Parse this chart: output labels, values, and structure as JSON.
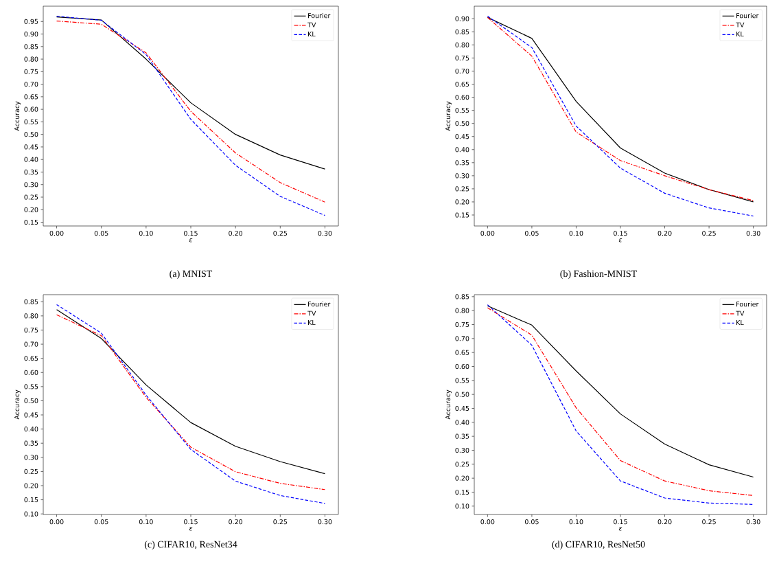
{
  "chart_data": [
    {
      "type": "line",
      "xlabel": "ε",
      "ylabel": "Accuracy",
      "annotations": [
        "(a) MNIST"
      ],
      "legend": "top right",
      "x": [
        0.0,
        0.05,
        0.1,
        0.15,
        0.2,
        0.25,
        0.3
      ],
      "series": [
        {
          "name": "Fourier",
          "color": "#000000",
          "line_style": "solid",
          "values": [
            0.968,
            0.956,
            0.8,
            0.626,
            0.5,
            0.418,
            0.362
          ]
        },
        {
          "name": "TV",
          "color": "#ff0000",
          "line_style": "dashdot",
          "values": [
            0.952,
            0.939,
            0.825,
            0.592,
            0.426,
            0.308,
            0.23
          ]
        },
        {
          "name": "KL",
          "color": "#0000ff",
          "line_style": "dashed",
          "values": [
            0.971,
            0.955,
            0.818,
            0.56,
            0.377,
            0.253,
            0.177
          ]
        }
      ],
      "xlim": [
        -0.015,
        0.315
      ],
      "ylim": [
        0.135,
        1.011
      ],
      "xticks": [
        {
          "value": 0.0,
          "label": "0.00"
        },
        0.05,
        {
          "value": 0.1,
          "label": "0.10"
        },
        0.15,
        {
          "value": 0.2,
          "label": "0.20"
        },
        0.25,
        {
          "value": 0.3,
          "label": "0.30"
        }
      ],
      "yticks": [
        0.15,
        {
          "value": 0.2,
          "label": "0.20"
        },
        0.25,
        {
          "value": 0.3,
          "label": "0.30"
        },
        0.35,
        {
          "value": 0.4,
          "label": "0.40"
        },
        0.45,
        {
          "value": 0.5,
          "label": "0.50"
        },
        0.55,
        {
          "value": 0.6,
          "label": "0.60"
        },
        0.65,
        {
          "value": 0.7,
          "label": "0.70"
        },
        0.75,
        {
          "value": 0.8,
          "label": "0.80"
        },
        0.85,
        {
          "value": 0.9,
          "label": "0.90"
        },
        0.95
      ]
    },
    {
      "type": "line",
      "xlabel": "ε",
      "ylabel": "Accuracy",
      "annotations": [
        "(b) Fashion-MNIST"
      ],
      "legend": "top right",
      "x": [
        0.0,
        0.05,
        0.1,
        0.15,
        0.2,
        0.25,
        0.3
      ],
      "series": [
        {
          "name": "Fourier",
          "color": "#000000",
          "line_style": "solid",
          "values": [
            0.905,
            0.825,
            0.584,
            0.406,
            0.31,
            0.247,
            0.2
          ]
        },
        {
          "name": "TV",
          "color": "#ff0000",
          "line_style": "dashdot",
          "values": [
            0.905,
            0.757,
            0.467,
            0.358,
            0.3,
            0.247,
            0.205
          ]
        },
        {
          "name": "KL",
          "color": "#0000ff",
          "line_style": "dashed",
          "values": [
            0.91,
            0.79,
            0.49,
            0.329,
            0.233,
            0.177,
            0.146
          ]
        }
      ],
      "xlim": [
        -0.015,
        0.315
      ],
      "ylim": [
        0.108,
        0.948
      ],
      "xticks": [
        {
          "value": 0.0,
          "label": "0.00"
        },
        0.05,
        {
          "value": 0.1,
          "label": "0.10"
        },
        0.15,
        {
          "value": 0.2,
          "label": "0.20"
        },
        0.25,
        {
          "value": 0.3,
          "label": "0.30"
        }
      ],
      "yticks": [
        0.15,
        {
          "value": 0.2,
          "label": "0.20"
        },
        0.25,
        {
          "value": 0.3,
          "label": "0.30"
        },
        0.35,
        {
          "value": 0.4,
          "label": "0.40"
        },
        0.45,
        {
          "value": 0.5,
          "label": "0.50"
        },
        0.55,
        {
          "value": 0.6,
          "label": "0.60"
        },
        0.65,
        {
          "value": 0.7,
          "label": "0.70"
        },
        0.75,
        {
          "value": 0.8,
          "label": "0.80"
        },
        0.85,
        {
          "value": 0.9,
          "label": "0.90"
        }
      ]
    },
    {
      "type": "line",
      "xlabel": "ε",
      "ylabel": "Accuracy",
      "annotations": [
        "(c) CIFAR10, ResNet34"
      ],
      "legend": "top right",
      "x": [
        0.0,
        0.05,
        0.1,
        0.15,
        0.2,
        0.25,
        0.3
      ],
      "series": [
        {
          "name": "Fourier",
          "color": "#000000",
          "line_style": "solid",
          "values": [
            0.822,
            0.72,
            0.556,
            0.423,
            0.339,
            0.285,
            0.242
          ]
        },
        {
          "name": "TV",
          "color": "#ff0000",
          "line_style": "dashdot",
          "values": [
            0.804,
            0.73,
            0.512,
            0.336,
            0.249,
            0.208,
            0.186
          ]
        },
        {
          "name": "KL",
          "color": "#0000ff",
          "line_style": "dashed",
          "values": [
            0.84,
            0.739,
            0.52,
            0.328,
            0.216,
            0.165,
            0.137
          ]
        }
      ],
      "xlim": [
        -0.015,
        0.315
      ],
      "ylim": [
        0.098,
        0.875
      ],
      "xticks": [
        {
          "value": 0.0,
          "label": "0.00"
        },
        0.05,
        {
          "value": 0.1,
          "label": "0.10"
        },
        0.15,
        {
          "value": 0.2,
          "label": "0.20"
        },
        0.25,
        {
          "value": 0.3,
          "label": "0.30"
        }
      ],
      "yticks": [
        {
          "value": 0.1,
          "label": "0.10"
        },
        0.15,
        {
          "value": 0.2,
          "label": "0.20"
        },
        0.25,
        {
          "value": 0.3,
          "label": "0.30"
        },
        0.35,
        {
          "value": 0.4,
          "label": "0.40"
        },
        0.45,
        {
          "value": 0.5,
          "label": "0.50"
        },
        0.55,
        {
          "value": 0.6,
          "label": "0.60"
        },
        0.65,
        {
          "value": 0.7,
          "label": "0.70"
        },
        0.75,
        {
          "value": 0.8,
          "label": "0.80"
        },
        0.85
      ]
    },
    {
      "type": "line",
      "xlabel": "ε",
      "ylabel": "Accuracy",
      "annotations": [
        "(d) CIFAR10, ResNet50"
      ],
      "legend": "top right",
      "x": [
        0.0,
        0.05,
        0.1,
        0.15,
        0.2,
        0.25,
        0.3
      ],
      "series": [
        {
          "name": "Fourier",
          "color": "#000000",
          "line_style": "solid",
          "values": [
            0.817,
            0.748,
            0.584,
            0.43,
            0.322,
            0.248,
            0.204
          ]
        },
        {
          "name": "TV",
          "color": "#ff0000",
          "line_style": "dashdot",
          "values": [
            0.81,
            0.712,
            0.452,
            0.263,
            0.19,
            0.155,
            0.138
          ]
        },
        {
          "name": "KL",
          "color": "#0000ff",
          "line_style": "dashed",
          "values": [
            0.821,
            0.676,
            0.369,
            0.19,
            0.129,
            0.111,
            0.106
          ]
        }
      ],
      "xlim": [
        -0.015,
        0.315
      ],
      "ylim": [
        0.07,
        0.857
      ],
      "xticks": [
        {
          "value": 0.0,
          "label": "0.00"
        },
        0.05,
        {
          "value": 0.1,
          "label": "0.10"
        },
        0.15,
        {
          "value": 0.2,
          "label": "0.20"
        },
        0.25,
        {
          "value": 0.3,
          "label": "0.30"
        }
      ],
      "yticks": [
        {
          "value": 0.1,
          "label": "0.10"
        },
        0.15,
        {
          "value": 0.2,
          "label": "0.20"
        },
        0.25,
        {
          "value": 0.3,
          "label": "0.30"
        },
        0.35,
        {
          "value": 0.4,
          "label": "0.40"
        },
        0.45,
        {
          "value": 0.5,
          "label": "0.50"
        },
        0.55,
        {
          "value": 0.6,
          "label": "0.60"
        },
        0.65,
        {
          "value": 0.7,
          "label": "0.70"
        },
        0.75,
        {
          "value": 0.8,
          "label": "0.80"
        },
        0.85
      ]
    }
  ]
}
